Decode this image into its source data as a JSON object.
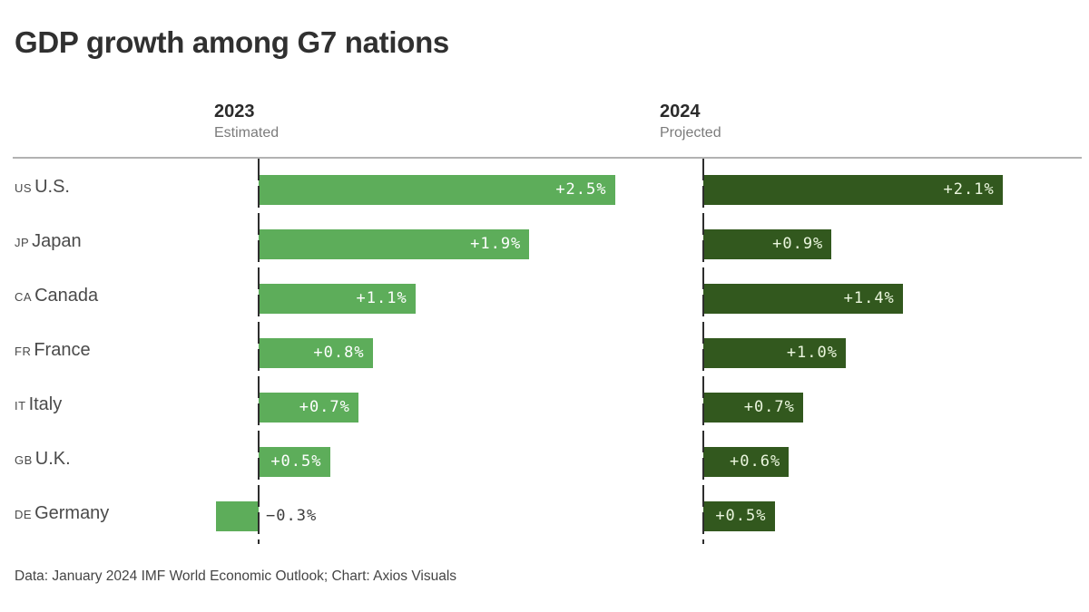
{
  "title": "GDP growth among G7 nations",
  "columns": [
    {
      "year": "2023",
      "subtitle": "Estimated"
    },
    {
      "year": "2024",
      "subtitle": "Projected"
    }
  ],
  "footer": "Data: January 2024 IMF World Economic Outlook; Chart: Axios Visuals",
  "colors": {
    "bar_2023": "#5dad5a",
    "bar_2024": "#32581e",
    "label_on_2023": "#ffffff",
    "label_on_2024": "#ebf6de",
    "negative_label": "#3d3d3d",
    "axis": "#2e2e2e",
    "top_rule": "#b2b2b2"
  },
  "chart_data": {
    "type": "bar",
    "orientation": "horizontal",
    "title": "GDP growth among G7 nations",
    "unit": "%",
    "xlim": [
      -0.5,
      2.6
    ],
    "grid": false,
    "legend_position": "column-headers-top",
    "categories": [
      "U.S.",
      "Japan",
      "Canada",
      "France",
      "Italy",
      "U.K.",
      "Germany"
    ],
    "country_codes": [
      "US",
      "JP",
      "CA",
      "FR",
      "IT",
      "GB",
      "DE"
    ],
    "series": [
      {
        "name": "2023 Estimated",
        "values": [
          2.5,
          1.9,
          1.1,
          0.8,
          0.7,
          0.5,
          -0.3
        ],
        "labels": [
          "+2.5%",
          "+1.9%",
          "+1.1%",
          "+0.8%",
          "+0.7%",
          "+0.5%",
          "−0.3%"
        ]
      },
      {
        "name": "2024 Projected",
        "values": [
          2.1,
          0.9,
          1.4,
          1.0,
          0.7,
          0.6,
          0.5
        ],
        "labels": [
          "+2.1%",
          "+0.9%",
          "+1.4%",
          "+1.0%",
          "+0.7%",
          "+0.6%",
          "+0.5%"
        ]
      }
    ]
  }
}
